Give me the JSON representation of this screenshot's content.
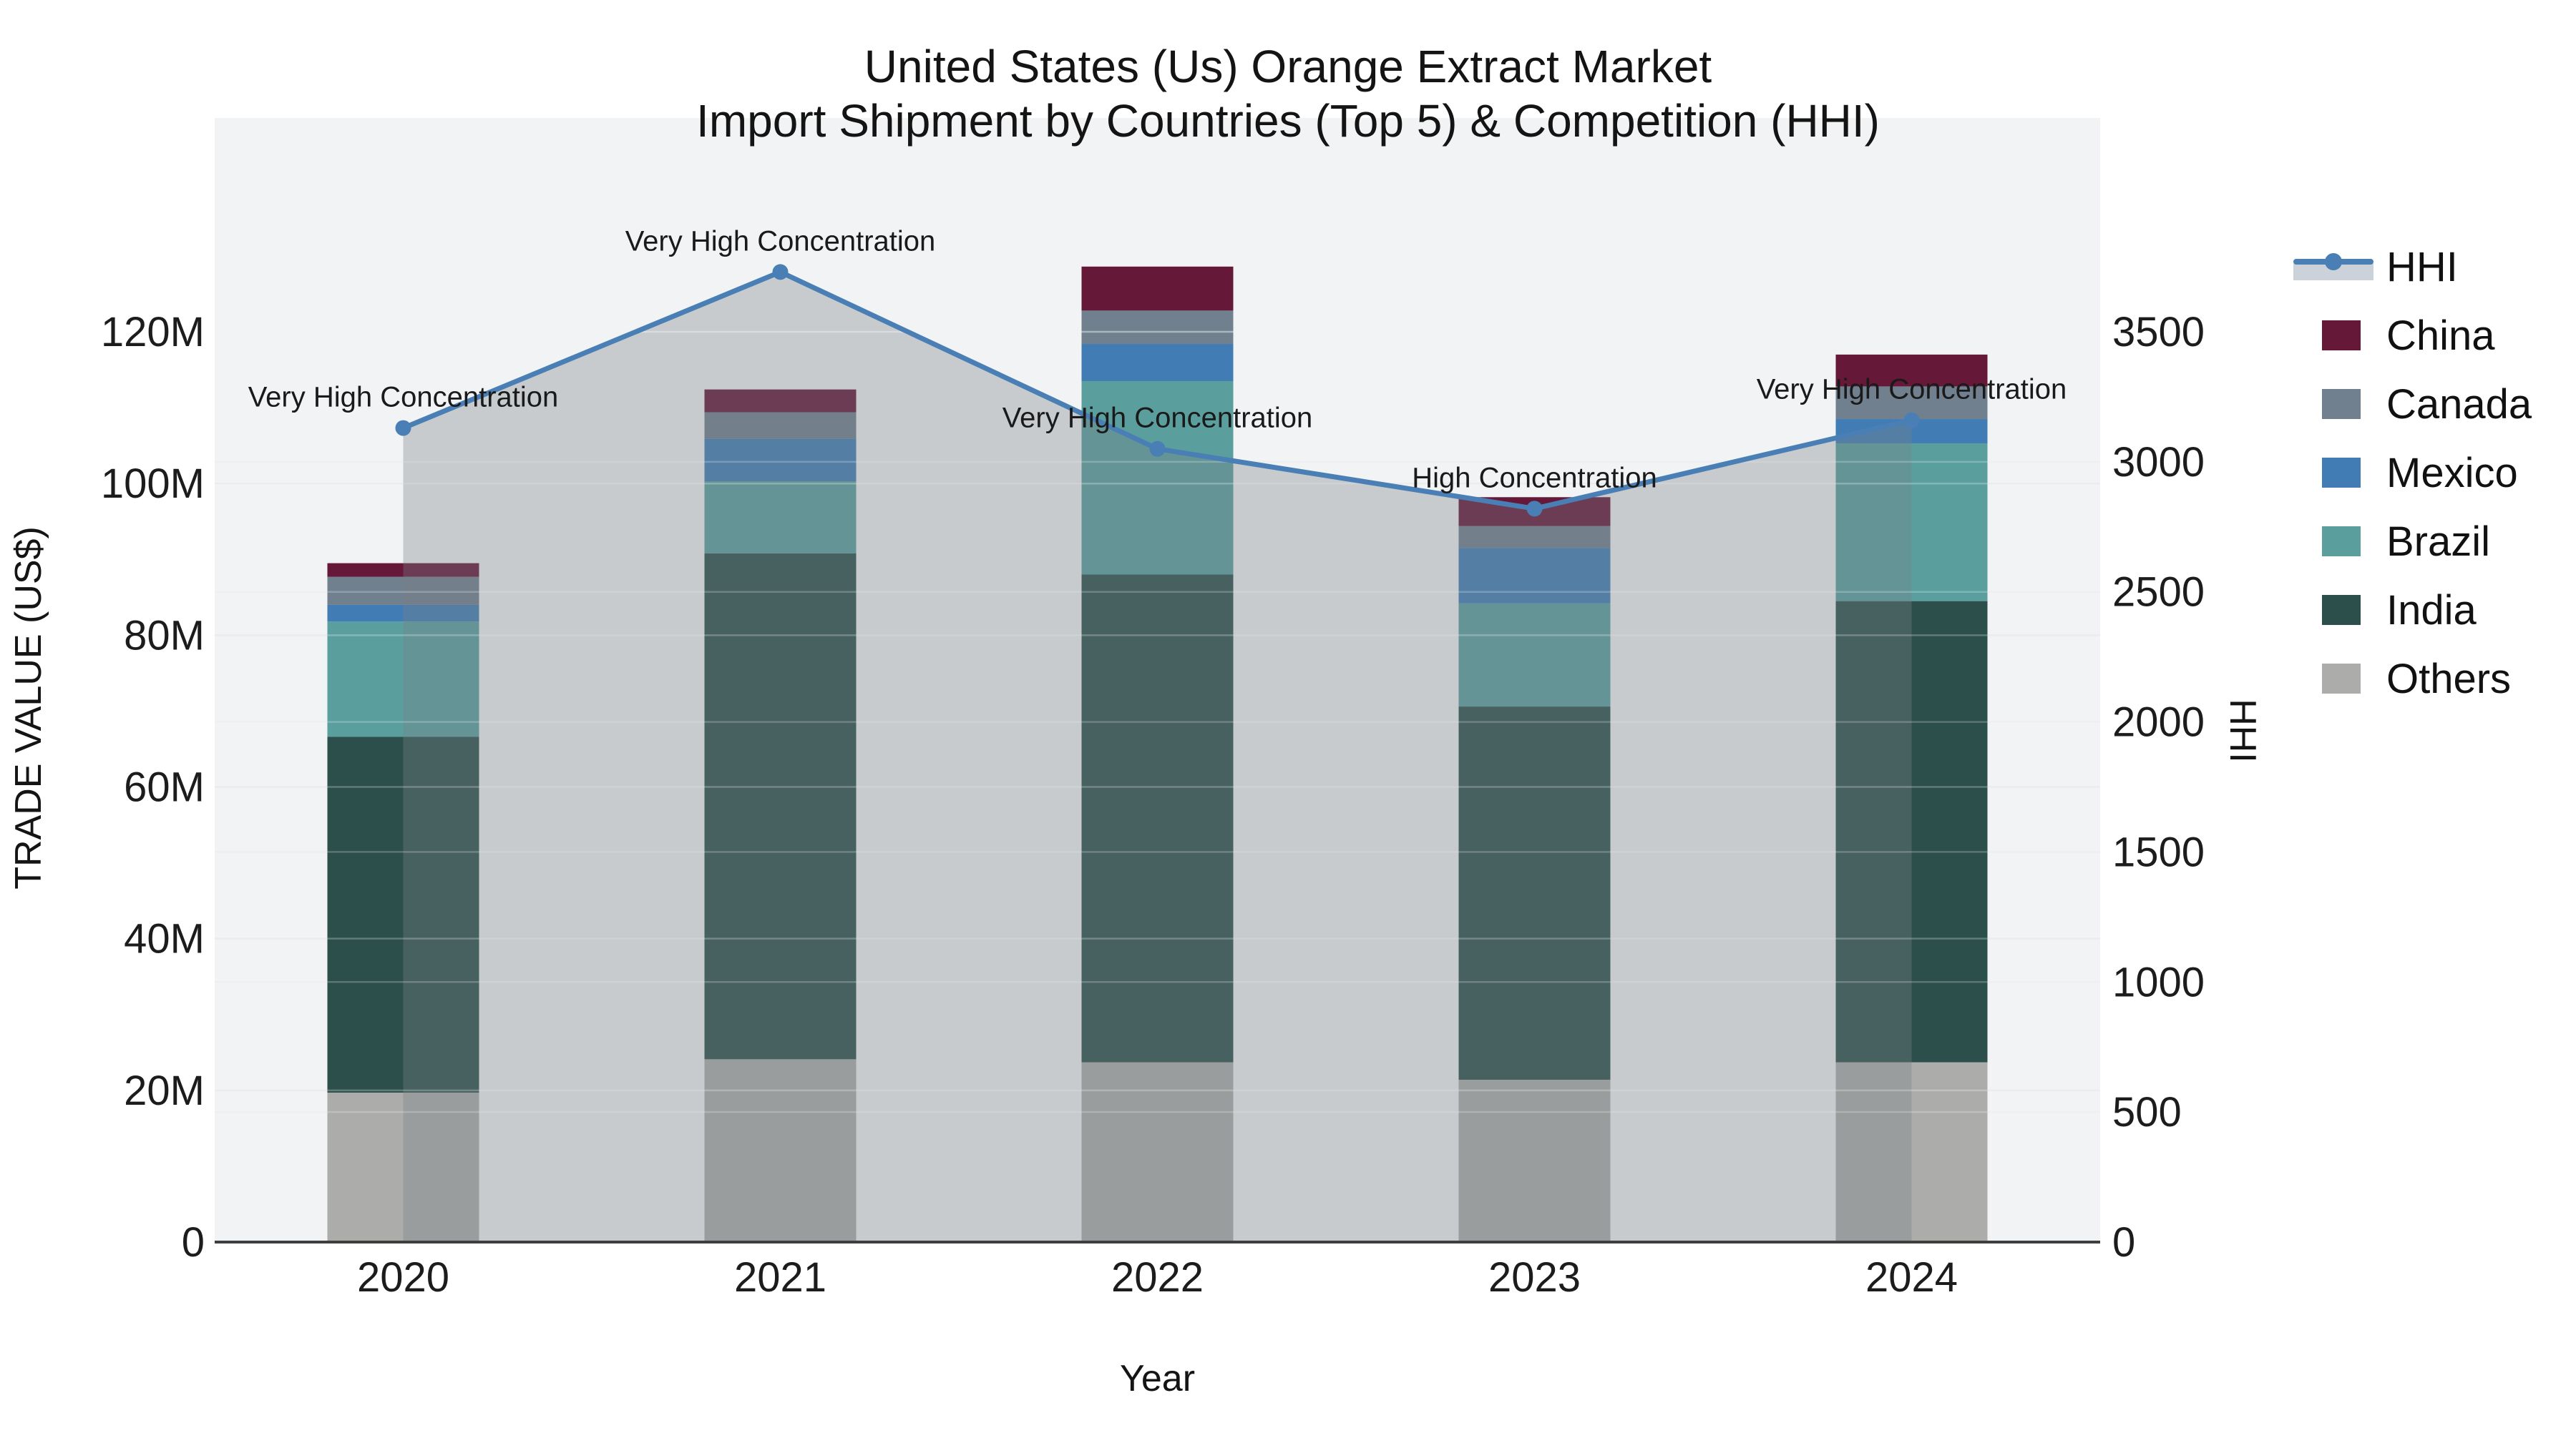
{
  "title": {
    "line1": "United States (Us) Orange Extract Market",
    "line2": "Import Shipment by Countries (Top 5) & Competition (HHI)"
  },
  "axes": {
    "x_label": "Year",
    "y_left_label": "TRADE VALUE (US$)",
    "y_right_label": "HHI",
    "y_left_ticks": [
      "0",
      "20M",
      "40M",
      "60M",
      "80M",
      "100M",
      "120M"
    ],
    "y_right_ticks": [
      "0",
      "500",
      "1000",
      "1500",
      "2000",
      "2500",
      "3000",
      "3500"
    ],
    "x_ticks": [
      "2020",
      "2021",
      "2022",
      "2023",
      "2024"
    ]
  },
  "legend": {
    "items": [
      {
        "label": "HHI",
        "type": "line",
        "color": "#4A7FB5"
      },
      {
        "label": "China",
        "type": "swatch",
        "color": "#651838"
      },
      {
        "label": "Canada",
        "type": "swatch",
        "color": "#71808F"
      },
      {
        "label": "Mexico",
        "type": "swatch",
        "color": "#417DB4"
      },
      {
        "label": "Brazil",
        "type": "swatch",
        "color": "#5A9F9E"
      },
      {
        "label": "India",
        "type": "swatch",
        "color": "#2D4F4C"
      },
      {
        "label": "Others",
        "type": "swatch",
        "color": "#ACACAA"
      }
    ]
  },
  "chart_data": {
    "type": "bar+line",
    "categories": [
      "2020",
      "2021",
      "2022",
      "2023",
      "2024"
    ],
    "bar_unit": "Trade value, million US$ (left axis)",
    "stack_order_bottom_to_top": [
      "Others",
      "India",
      "Brazil",
      "Mexico",
      "Canada",
      "China"
    ],
    "series": [
      {
        "name": "Others",
        "color": "#ACACAA",
        "values": [
          19.7,
          24.1,
          23.7,
          21.4,
          23.7
        ]
      },
      {
        "name": "India",
        "color": "#2D4F4C",
        "values": [
          46.9,
          66.7,
          64.3,
          49.2,
          60.8
        ]
      },
      {
        "name": "Brazil",
        "color": "#5A9F9E",
        "values": [
          15.2,
          9.5,
          25.5,
          13.6,
          20.8
        ]
      },
      {
        "name": "Mexico",
        "color": "#417DB4",
        "values": [
          2.2,
          5.6,
          4.9,
          7.3,
          3.2
        ]
      },
      {
        "name": "Canada",
        "color": "#71808F",
        "values": [
          3.7,
          3.5,
          4.4,
          2.9,
          4.3
        ]
      },
      {
        "name": "China",
        "color": "#651838",
        "values": [
          1.8,
          3.0,
          5.8,
          3.8,
          4.2
        ]
      }
    ],
    "bar_totals_M": [
      89.5,
      112.4,
      128.6,
      98.2,
      117.0
    ],
    "line": {
      "name": "HHI",
      "color": "#4A7FB5",
      "area_fill": "rgba(119,128,135,0.35)",
      "values": [
        3130,
        3730,
        3050,
        2820,
        3160
      ],
      "annotations": [
        "Very High Concentration",
        "Very High Concentration",
        "Very High Concentration",
        "High Concentration",
        "Very High Concentration"
      ]
    },
    "ylim_left_M": [
      0,
      148
    ],
    "ylim_right": [
      0,
      4320
    ],
    "y_left_tick_step_M": 20,
    "y_right_tick_step": 500,
    "grid": true,
    "legend_position": "right"
  }
}
